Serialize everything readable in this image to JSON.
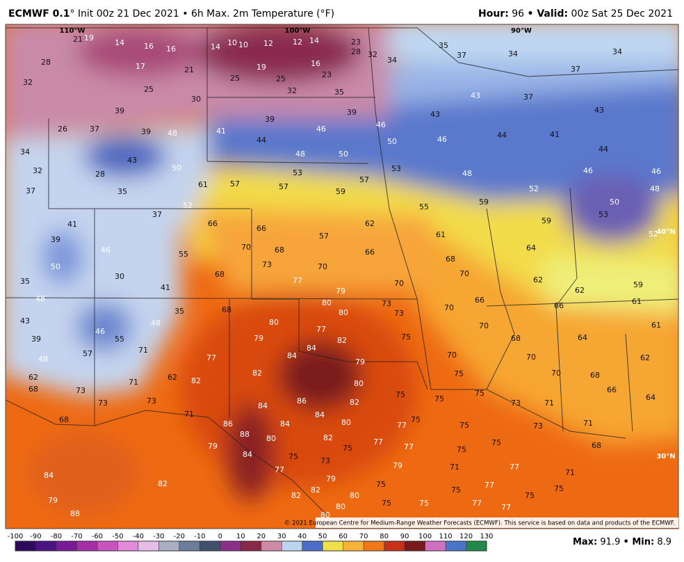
{
  "header": {
    "title": "ECMWF 0.1",
    "subtitle": "° Init 00z 21 Dec 2021 • 6h Max. 2m Temperature (°F)",
    "hour_label": "Hour:",
    "hour": "96",
    "valid_label": "• Valid:",
    "valid": "00z Sat 25 Dec 2021"
  },
  "map_labels": {
    "lon": [
      "110°W",
      "100°W",
      "90°W"
    ],
    "lat": [
      "40°N",
      "30°N"
    ]
  },
  "stations": [
    21,
    19,
    14,
    16,
    16,
    14,
    10,
    10,
    12,
    12,
    14,
    23,
    28,
    32,
    28,
    17,
    21,
    25,
    19,
    25,
    16,
    23,
    32,
    25,
    30,
    32,
    35,
    34,
    35,
    37,
    34,
    37,
    34,
    39,
    26,
    37,
    39,
    48,
    41,
    39,
    46,
    39,
    46,
    43,
    43,
    37,
    43,
    34,
    43,
    50,
    44,
    48,
    50,
    50,
    46,
    44,
    41,
    44,
    46,
    32,
    28,
    61,
    57,
    53,
    57,
    53,
    48,
    52,
    46,
    48,
    37,
    35,
    52,
    57,
    59,
    55,
    59,
    50,
    41,
    37,
    66,
    66,
    57,
    62,
    61,
    59,
    53,
    52,
    39,
    46,
    55,
    70,
    68,
    66,
    68,
    64,
    50,
    30,
    68,
    73,
    70,
    70,
    70,
    62,
    59,
    35,
    41,
    77,
    79,
    66,
    62,
    48,
    35,
    68,
    80,
    73,
    70,
    66,
    61,
    43,
    48,
    80,
    80,
    73,
    70,
    61,
    46,
    77,
    39,
    55,
    79,
    82,
    75,
    68,
    64,
    84,
    71,
    48,
    57,
    77,
    84,
    79,
    70,
    70,
    62,
    82,
    75,
    70,
    68,
    62,
    62,
    82,
    71,
    80,
    68,
    73,
    75,
    75,
    66,
    84,
    86,
    82,
    75,
    73,
    71,
    64,
    73,
    73,
    71,
    84,
    86,
    84,
    80,
    75,
    75,
    73,
    71,
    68,
    88,
    77,
    80,
    82,
    77,
    75,
    68,
    79,
    84,
    75,
    77,
    75,
    75,
    73,
    79,
    71,
    77,
    71,
    84,
    82,
    77,
    79,
    75,
    75,
    77,
    75,
    82,
    82,
    80,
    75,
    77,
    75,
    88,
    80,
    75,
    80,
    77,
    79
  ],
  "copyright": "© 2021 European Centre for Medium-Range Weather Forecasts (ECMWF). This service is based on data and products of the ECMWF.",
  "colorbar": {
    "ticks": [
      -100,
      -90,
      -80,
      -70,
      -60,
      -50,
      -40,
      -30,
      -20,
      -10,
      0,
      10,
      20,
      30,
      40,
      50,
      60,
      70,
      80,
      90,
      100,
      110,
      120,
      130
    ],
    "colors": [
      "#2e0a5e",
      "#4c1282",
      "#7a1a94",
      "#a42fa8",
      "#c852bf",
      "#e08ad8",
      "#e6bde8",
      "#a9aec2",
      "#6c7d9c",
      "#3f4f6c",
      "#8c2f8c",
      "#8a2848",
      "#cf8aa6",
      "#bcd4f0",
      "#4d6ec8",
      "#f0e04a",
      "#f7b23a",
      "#f07818",
      "#c8301a",
      "#7a1a1a",
      "#d070c0",
      "#4a74c8",
      "#1f8a4a"
    ]
  },
  "stats": {
    "max_label": "Max:",
    "max": 91.9,
    "min_label": "• Min:",
    "min": 8.9
  }
}
